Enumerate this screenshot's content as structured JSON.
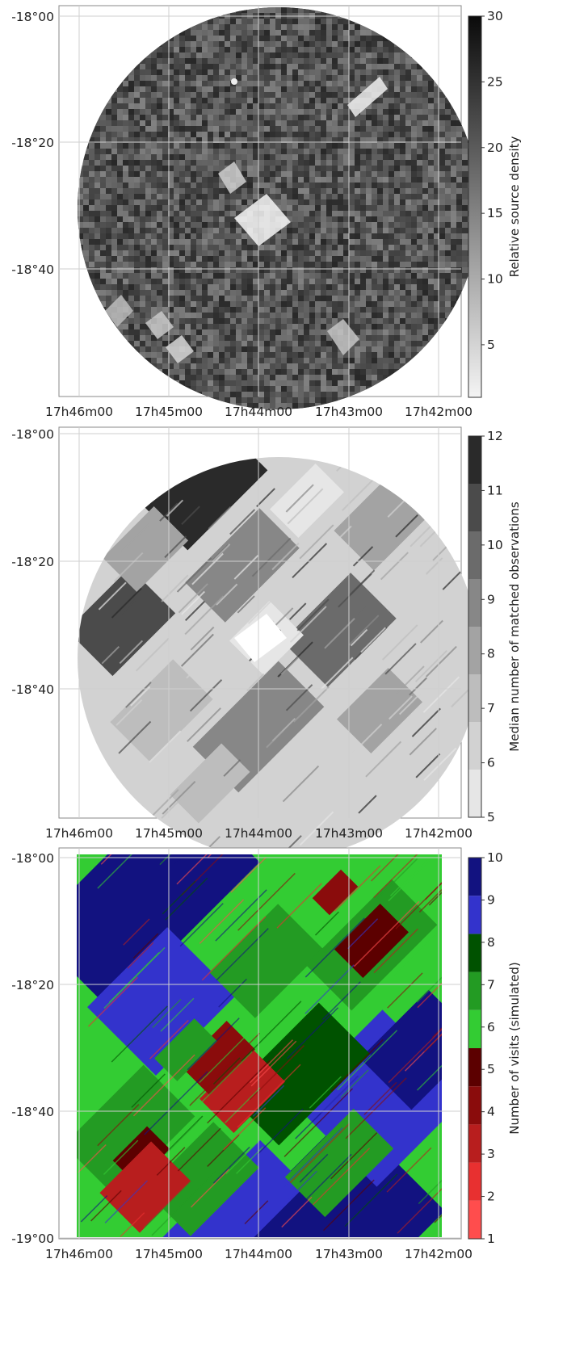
{
  "chart_data": [
    {
      "type": "heatmap",
      "panel": "top",
      "footprint": "circle",
      "x_ticks": [
        "17h46m00",
        "17h45m00",
        "17h44m00",
        "17h43m00",
        "17h42m00"
      ],
      "y_ticks": [
        "-18°00",
        "-18°20",
        "-18°40"
      ],
      "grid": true,
      "colorbar": {
        "label": "Relative source density",
        "range": [
          1,
          30
        ],
        "ticks": [
          5,
          10,
          15,
          20,
          25,
          30
        ],
        "colormap": "greys",
        "discrete": false,
        "colors": [
          "#f4f4f4",
          "#0a0a0a"
        ]
      }
    },
    {
      "type": "heatmap",
      "panel": "middle",
      "footprint": "circle",
      "x_ticks": [
        "17h46m00",
        "17h45m00",
        "17h44m00",
        "17h43m00",
        "17h42m00"
      ],
      "y_ticks": [
        "-18°00",
        "-18°20",
        "-18°40"
      ],
      "grid": true,
      "colorbar": {
        "label": "Median number of matched observations",
        "range": [
          5,
          12
        ],
        "ticks": [
          5,
          6,
          7,
          8,
          9,
          10,
          11,
          12
        ],
        "colormap": "greys",
        "discrete": true,
        "colors": [
          "#e6e6e6",
          "#d2d2d2",
          "#bdbdbd",
          "#a3a3a3",
          "#878787",
          "#6b6b6b",
          "#4b4b4b",
          "#2a2a2a"
        ]
      }
    },
    {
      "type": "heatmap",
      "panel": "bottom",
      "footprint": "square",
      "x_ticks": [
        "17h46m00",
        "17h45m00",
        "17h44m00",
        "17h43m00",
        "17h42m00"
      ],
      "y_ticks": [
        "-18°00",
        "-18°20",
        "-18°40",
        "-19°00"
      ],
      "grid": true,
      "colorbar": {
        "label": "Number of visits (simulated)",
        "range": [
          1,
          10
        ],
        "ticks": [
          1,
          2,
          3,
          4,
          5,
          6,
          7,
          8,
          9,
          10
        ],
        "colormap": "red-green-blue",
        "discrete": true,
        "colors": [
          "#ff4d4d",
          "#e83030",
          "#b81e1e",
          "#8a0c0c",
          "#5c0000",
          "#33cc33",
          "#239b23",
          "#005200",
          "#3333cc",
          "#121280"
        ]
      }
    }
  ]
}
